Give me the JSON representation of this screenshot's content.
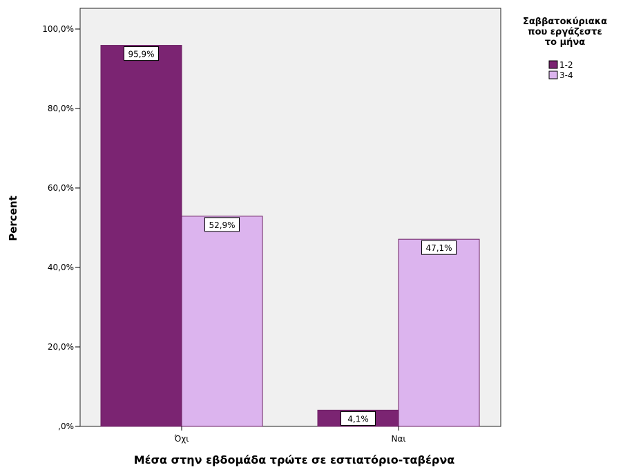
{
  "chart_data": {
    "type": "bar",
    "title": "",
    "xlabel": "Μέσα στην εβδομάδα τρώτε σε εστιατόριο-ταβέρνα",
    "ylabel": "Percent",
    "categories": [
      "Όχι",
      "Ναι"
    ],
    "series": [
      {
        "name": "1-2",
        "values": [
          95.9,
          4.1
        ],
        "labels": [
          "95,9%",
          "4,1%"
        ]
      },
      {
        "name": "3-4",
        "values": [
          52.9,
          47.1
        ],
        "labels": [
          "52,9%",
          "47,1%"
        ]
      }
    ],
    "ylim": [
      0,
      100
    ],
    "yticks": [
      0,
      20,
      40,
      60,
      80,
      100
    ],
    "ytick_labels": [
      ",0%",
      "20,0%",
      "40,0%",
      "60,0%",
      "80,0%",
      "100,0%"
    ],
    "grid": false,
    "legend": {
      "title_lines": [
        "Σαββατοκύριακα",
        "που εργάζεστε",
        "το μήνα"
      ],
      "placement": "right"
    },
    "colors": {
      "plot_background": "#f0f0f0",
      "series": [
        "#7b2472",
        "#dcb4ee"
      ],
      "bar_stroke": "#6b1f63",
      "text": "#000000"
    }
  }
}
